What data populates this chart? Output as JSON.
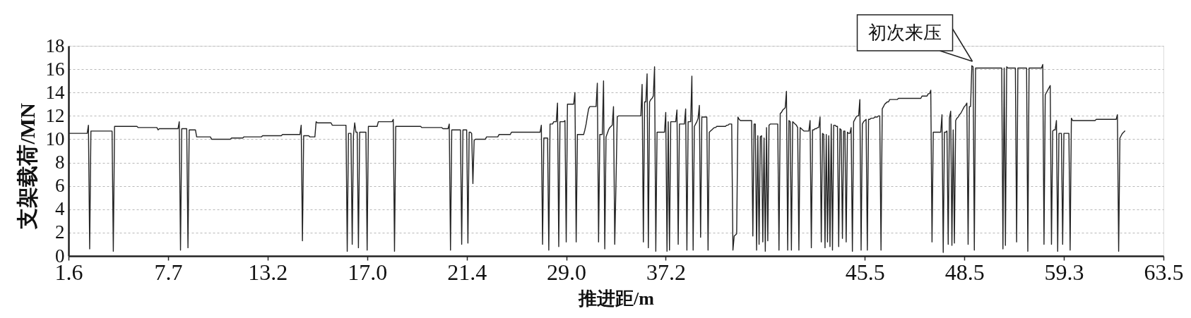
{
  "chart_data": {
    "type": "line",
    "xlabel": "推进距/m",
    "ylabel": "支架载荷/MN",
    "categories": [
      "1.6",
      null,
      null,
      null,
      null,
      null,
      null,
      null,
      null,
      null,
      null,
      null,
      null,
      null,
      null,
      null,
      null,
      null,
      null,
      null,
      null,
      null,
      null,
      null,
      null,
      null,
      null,
      null,
      null,
      null,
      null,
      null,
      null,
      null,
      null,
      null,
      null,
      null,
      null,
      null,
      null,
      null,
      null,
      null,
      null,
      null,
      null,
      null,
      null,
      null,
      null,
      null,
      null,
      null,
      null,
      null,
      null,
      null,
      null,
      null,
      null,
      null,
      null,
      null,
      null,
      null,
      null,
      null,
      null,
      null,
      null,
      null,
      null,
      null,
      null,
      null,
      null,
      null,
      null,
      null,
      "7.7",
      null,
      null,
      null,
      null,
      null,
      null,
      null,
      null,
      null,
      null,
      null,
      null,
      null,
      null,
      null,
      null,
      null,
      null,
      null,
      null,
      null,
      null,
      null,
      null,
      null,
      null,
      null,
      null,
      null,
      null,
      null,
      null,
      null,
      null,
      null,
      null,
      null,
      null,
      null,
      null,
      null,
      null,
      null,
      null,
      null,
      null,
      null,
      null,
      null,
      null,
      null,
      null,
      null,
      null,
      null,
      null,
      null,
      null,
      null,
      null,
      null,
      null,
      null,
      null,
      null,
      null,
      null,
      null,
      null,
      null,
      null,
      null,
      null,
      null,
      null,
      null,
      null,
      null,
      null,
      "13.2",
      null,
      null,
      null,
      null,
      null,
      null,
      null,
      null,
      null,
      null,
      null,
      null,
      null,
      null,
      null,
      null,
      null,
      null,
      null,
      null,
      null,
      null,
      null,
      null,
      null,
      null,
      null,
      null,
      null,
      null,
      null,
      null,
      null,
      null,
      null,
      null,
      null,
      null,
      null,
      null,
      null,
      null,
      null,
      null,
      null,
      null,
      null,
      null,
      null,
      null,
      null,
      null,
      null,
      null,
      null,
      null,
      null,
      null,
      null,
      null,
      null,
      null,
      null,
      null,
      null,
      null,
      null,
      null,
      null,
      null,
      null,
      null,
      null,
      null,
      null,
      null,
      null,
      null,
      null,
      "17.0",
      null,
      null,
      null,
      null,
      null,
      null,
      null,
      null,
      null,
      null,
      null,
      null,
      null,
      null,
      null,
      null,
      null,
      null,
      null,
      null,
      null,
      null,
      null,
      null,
      null,
      null,
      null,
      null,
      null,
      null,
      null,
      null,
      null,
      null,
      null,
      null,
      null,
      null,
      null,
      null,
      null,
      null,
      null,
      null,
      null,
      null,
      null,
      null,
      null,
      null,
      null,
      null,
      null,
      null,
      null,
      null,
      null,
      null,
      null,
      null,
      null,
      null,
      null,
      null,
      null,
      null,
      null,
      null,
      null,
      null,
      null,
      null,
      null,
      null,
      null,
      null,
      null,
      null,
      null,
      "21.4",
      null,
      null,
      null,
      null,
      null,
      null,
      null,
      null,
      null,
      null,
      null,
      null,
      null,
      null,
      null,
      null,
      null,
      null,
      null,
      null,
      null,
      null,
      null,
      null,
      null,
      null,
      null,
      null,
      null,
      null,
      null,
      null,
      null,
      null,
      null,
      null,
      null,
      null,
      null,
      null,
      null,
      null,
      null,
      null,
      null,
      null,
      null,
      null,
      null,
      null,
      null,
      null,
      null,
      null,
      null,
      null,
      null,
      null,
      null,
      null,
      null,
      null,
      null,
      null,
      null,
      null,
      null,
      null,
      null,
      null,
      null,
      null,
      null,
      null,
      null,
      null,
      null,
      null,
      null,
      "29.0",
      null,
      null,
      null,
      null,
      null,
      null,
      null,
      null,
      null,
      null,
      null,
      null,
      null,
      null,
      null,
      null,
      null,
      null,
      null,
      null,
      null,
      null,
      null,
      null,
      null,
      null,
      null,
      null,
      null,
      null,
      null,
      null,
      null,
      null,
      null,
      null,
      null,
      null,
      null,
      null,
      null,
      null,
      null,
      null,
      null,
      null,
      null,
      null,
      null,
      null,
      null,
      null,
      null,
      null,
      null,
      null,
      null,
      null,
      null,
      null,
      null,
      null,
      null,
      null,
      null,
      null,
      null,
      null,
      null,
      null,
      null,
      null,
      null,
      null,
      null,
      null,
      null,
      null,
      null,
      "37.2",
      null,
      null,
      null,
      null,
      null,
      null,
      null,
      null,
      null,
      null,
      null,
      null,
      null,
      null,
      null,
      null,
      null,
      null,
      null,
      null,
      null,
      null,
      null,
      null,
      null,
      null,
      null,
      null,
      null,
      null,
      null,
      null,
      null,
      null,
      null,
      null,
      null,
      null,
      null,
      null,
      null,
      null,
      null,
      null,
      null,
      null,
      null,
      null,
      null,
      null,
      null,
      null,
      null,
      null,
      null,
      null,
      null,
      null,
      null,
      null,
      null,
      null,
      null,
      null,
      null,
      null,
      null,
      null,
      null,
      null,
      null,
      null,
      null,
      null,
      null,
      null,
      null,
      null,
      null,
      null,
      null,
      null,
      null,
      null,
      null,
      null,
      null,
      null,
      null,
      null,
      null,
      null,
      null,
      null,
      null,
      null,
      null,
      null,
      null,
      null,
      null,
      null,
      null,
      null,
      null,
      null,
      null,
      null,
      null,
      null,
      null,
      null,
      null,
      null,
      null,
      null,
      null,
      null,
      null,
      null,
      null,
      null,
      null,
      null,
      null,
      null,
      null,
      null,
      null,
      null,
      null,
      null,
      null,
      null,
      null,
      null,
      null,
      null,
      null,
      null,
      null,
      null,
      null,
      null,
      null,
      null,
      null,
      null,
      null,
      null,
      null,
      null,
      null,
      null,
      null,
      null,
      null,
      null,
      null,
      "45.5",
      null,
      null,
      null,
      null,
      null,
      null,
      null,
      null,
      null,
      null,
      null,
      null,
      null,
      null,
      null,
      null,
      null,
      null,
      null,
      null,
      null,
      null,
      null,
      null,
      null,
      null,
      null,
      null,
      null,
      null,
      null,
      null,
      null,
      null,
      null,
      null,
      null,
      null,
      null,
      null,
      null,
      null,
      null,
      null,
      null,
      null,
      null,
      null,
      null,
      null,
      null,
      null,
      null,
      null,
      null,
      null,
      null,
      null,
      null,
      null,
      null,
      null,
      null,
      null,
      null,
      null,
      null,
      null,
      null,
      null,
      null,
      null,
      null,
      null,
      null,
      null,
      null,
      null,
      null,
      "48.5",
      null,
      null,
      null,
      null,
      null,
      null,
      null,
      null,
      null,
      null,
      null,
      null,
      null,
      null,
      null,
      null,
      null,
      null,
      null,
      null,
      null,
      null,
      null,
      null,
      null,
      null,
      null,
      null,
      null,
      null,
      null,
      null,
      null,
      null,
      null,
      null,
      null,
      null,
      null,
      null,
      null,
      null,
      null,
      null,
      null,
      null,
      null,
      null,
      null,
      null,
      null,
      null,
      null,
      null,
      null,
      null,
      null,
      null,
      null,
      null,
      null,
      null,
      null,
      null,
      null,
      null,
      null,
      null,
      null,
      null,
      null,
      null,
      null,
      null,
      null,
      null,
      null,
      null,
      null,
      "59.3",
      null,
      null,
      null,
      null,
      null,
      null,
      null,
      null,
      null,
      null,
      null,
      null,
      null,
      null,
      null,
      null,
      null,
      null,
      null,
      null,
      null,
      null,
      null,
      null,
      null,
      null,
      null,
      null,
      null,
      null,
      null,
      null,
      null,
      null,
      null,
      null,
      null,
      null,
      null,
      null,
      null,
      null,
      null,
      null,
      null,
      null,
      null,
      null,
      null,
      null,
      null,
      null,
      null,
      null,
      null,
      null,
      null,
      null,
      null,
      null,
      null,
      null,
      null,
      null,
      null,
      null,
      null,
      null,
      null,
      null,
      null,
      null,
      null,
      null,
      null,
      null,
      null,
      null,
      null,
      "63.5"
    ],
    "series": [
      {
        "color": "#222222",
        "values": [
          10.5,
          10.5,
          10.5,
          10.5,
          10.5,
          10.5,
          10.5,
          10.5,
          10.5,
          10.5,
          10.5,
          10.5,
          10.5,
          10.5,
          10.5,
          10.5,
          11.2,
          0.6,
          10.7,
          10.7,
          10.7,
          10.7,
          10.7,
          10.7,
          10.7,
          10.7,
          10.7,
          10.7,
          10.7,
          10.7,
          10.7,
          10.7,
          10.7,
          10.7,
          10.7,
          10.7,
          0.4,
          11.1,
          11.1,
          11.1,
          11.1,
          11.1,
          11.1,
          11.1,
          11.1,
          11.1,
          11.1,
          11.1,
          11.1,
          11.1,
          11.1,
          11.1,
          11.1,
          11.1,
          11.1,
          11.1,
          11.0,
          11.0,
          11.0,
          11.0,
          11.0,
          11.0,
          11.0,
          11.0,
          11.0,
          11.0,
          11.0,
          11.0,
          11.0,
          11.0,
          11.0,
          11.0,
          10.8,
          10.9,
          10.9,
          10.9,
          10.9,
          10.9,
          10.9,
          10.9,
          10.9,
          10.9,
          10.9,
          10.9,
          10.9,
          10.9,
          10.9,
          10.9,
          10.9,
          11.5,
          0.5,
          10.9,
          10.9,
          10.9,
          10.9,
          10.9,
          0.7,
          10.8,
          10.8,
          10.8,
          10.8,
          10.8,
          10.8,
          10.2,
          10.2,
          10.2,
          10.2,
          10.2,
          10.2,
          10.2,
          10.2,
          10.2,
          10.2,
          10.2,
          10.2,
          10.0,
          10.0,
          10.0,
          10.0,
          10.0,
          10.0,
          10.0,
          10.0,
          10.0,
          10.0,
          10.0,
          10.0,
          10.0,
          10.0,
          10.0,
          10.0,
          10.1,
          10.1,
          10.1,
          10.1,
          10.1,
          10.1,
          10.1,
          10.1,
          10.1,
          10.1,
          10.2,
          10.2,
          10.2,
          10.2,
          10.2,
          10.2,
          10.2,
          10.2,
          10.2,
          10.2,
          10.2,
          10.2,
          10.2,
          10.2,
          10.2,
          10.3,
          10.3,
          10.3,
          10.3,
          10.3,
          10.3,
          10.3,
          10.3,
          10.3,
          10.3,
          10.3,
          10.3,
          10.3,
          10.3,
          10.3,
          10.3,
          10.4,
          10.4,
          10.4,
          10.4,
          10.4,
          10.4,
          10.4,
          10.4,
          10.4,
          10.4,
          10.4,
          10.4,
          10.4,
          10.4,
          10.4,
          11.2,
          1.3,
          10.3,
          10.3,
          10.3,
          10.3,
          10.3,
          10.2,
          10.2,
          10.2,
          10.2,
          10.2,
          11.5,
          11.4,
          11.4,
          11.4,
          11.4,
          11.4,
          11.4,
          11.4,
          11.4,
          11.4,
          11.4,
          11.4,
          11.4,
          11.2,
          11.2,
          11.2,
          11.2,
          11.2,
          11.2,
          11.2,
          11.2,
          11.2,
          11.2,
          11.2,
          11.2,
          0.4,
          10.5,
          10.5,
          10.5,
          1.0,
          10.3,
          11.4,
          10.6,
          10.6,
          0.7,
          10.6,
          10.6,
          10.6,
          10.6,
          10.6,
          10.6,
          0.5,
          11.1,
          11.1,
          11.1,
          11.1,
          11.1,
          11.1,
          11.1,
          11.1,
          11.5,
          11.5,
          11.5,
          11.5,
          11.5,
          11.5,
          11.5,
          11.5,
          11.5,
          11.5,
          11.5,
          11.5,
          11.7,
          0.4,
          11.1,
          11.1,
          11.1,
          11.1,
          11.1,
          11.1,
          11.1,
          11.1,
          11.1,
          11.1,
          11.1,
          11.1,
          11.1,
          11.1,
          11.1,
          11.1,
          11.1,
          11.1,
          11.1,
          11.1,
          11.1,
          11.0,
          11.0,
          11.0,
          11.0,
          11.0,
          11.0,
          11.0,
          11.0,
          11.0,
          11.0,
          11.0,
          11.0,
          11.0,
          11.0,
          11.0,
          11.0,
          11.0,
          10.9,
          10.9,
          10.9,
          10.9,
          10.9,
          11.3,
          0.5,
          10.8,
          10.8,
          10.8,
          10.8,
          10.8,
          10.8,
          10.8,
          10.8,
          1.0,
          10.8,
          10.8,
          10.8,
          10.8,
          1.1,
          10.6,
          10.6,
          10.5,
          6.2,
          9.9,
          10.0,
          10.0,
          10.0,
          10.0,
          10.0,
          10.0,
          10.0,
          10.0,
          10.0,
          10.2,
          10.2,
          10.2,
          10.2,
          10.2,
          10.2,
          10.2,
          10.2,
          10.2,
          10.2,
          10.4,
          10.4,
          10.4,
          10.4,
          10.4,
          10.4,
          10.4,
          10.4,
          10.4,
          10.4,
          10.6,
          10.6,
          10.6,
          10.6,
          10.6,
          10.6,
          10.6,
          10.6,
          10.6,
          10.6,
          10.6,
          10.6,
          10.6,
          10.6,
          10.6,
          10.6,
          10.6,
          10.6,
          10.6,
          10.6,
          10.6,
          10.6,
          10.6,
          10.6,
          11.2,
          1.0,
          10.1,
          10.1,
          10.1,
          10.1,
          0.5,
          11.3,
          11.3,
          11.3,
          11.5,
          11.5,
          11.5,
          13.1,
          0.8,
          11.5,
          11.5,
          11.5,
          11.5,
          11.6,
          1.2,
          13.0,
          13.0,
          13.0,
          13.0,
          13.0,
          13.0,
          14.0,
          1.2,
          10.4,
          10.4,
          10.4,
          10.4,
          10.4,
          10.4,
          10.8,
          11.3,
          12.0,
          12.6,
          12.8,
          12.8,
          12.8,
          12.8,
          12.8,
          12.8,
          14.8,
          1.2,
          10.4,
          10.4,
          10.4,
          15.0,
          0.6,
          10.2,
          10.5,
          10.8,
          11.0,
          11.1,
          11.2,
          12.8,
          1.0,
          6.2,
          11.9,
          12.0,
          12.0,
          12.0,
          12.0,
          12.0,
          12.0,
          12.0,
          12.0,
          12.0,
          12.0,
          12.0,
          12.0,
          12.0,
          12.0,
          12.0,
          12.0,
          12.0,
          12.0,
          12.0,
          14.7,
          1.2,
          13.2,
          13.2,
          15.6,
          0.7,
          13.2,
          13.4,
          13.5,
          13.7,
          16.2,
          0.4,
          10.6,
          10.6,
          10.6,
          10.6,
          10.6,
          10.6,
          10.6,
          12.3,
          0.4,
          11.5,
          0.5,
          11.5,
          11.5,
          11.5,
          11.5,
          11.5,
          12.5,
          1.0,
          11.3,
          11.3,
          11.3,
          11.3,
          11.3,
          12.6,
          0.5,
          11.5,
          11.5,
          11.5,
          15.4,
          0.5,
          11.1,
          11.3,
          11.5,
          11.8,
          12.9,
          1.6,
          11.9,
          11.9,
          11.9,
          11.9,
          11.9,
          0.5,
          10.6,
          10.7,
          10.8,
          10.9,
          11.0,
          11.0,
          11.1,
          11.1,
          11.1,
          11.1,
          11.1,
          11.1,
          11.1,
          11.1,
          11.2,
          11.2,
          11.3,
          11.3,
          11.3,
          0.5,
          1.7,
          1.8,
          1.9,
          11.9,
          11.7,
          11.6,
          11.6,
          11.6,
          11.6,
          11.6,
          11.6,
          11.6,
          11.6,
          11.6,
          11.6,
          1.7,
          11.3,
          11.3,
          0.5,
          10.3,
          1.0,
          10.2,
          10.3,
          1.2,
          10.1,
          0.4,
          11.0,
          1.3,
          11.2,
          11.3,
          11.3,
          11.3,
          11.3,
          11.3,
          11.3,
          11.3,
          0.5,
          12.2,
          12.3,
          12.5,
          12.6,
          12.7,
          14.1,
          0.5,
          11.6,
          11.5,
          0.5,
          11.5,
          11.4,
          11.3,
          11.2,
          11.0,
          0.5,
          11.0,
          10.9,
          10.8,
          10.7,
          10.7,
          10.7,
          10.7,
          10.7,
          11.6,
          0.7,
          10.8,
          10.8,
          10.9,
          10.9,
          11.0,
          11.0,
          11.9,
          1.2,
          10.5,
          10.4,
          0.7,
          10.4,
          1.2,
          10.3,
          0.8,
          11.3,
          0.5,
          11.2,
          11.2,
          11.1,
          11.1,
          0.8,
          10.9,
          10.8,
          1.5,
          10.7,
          10.7,
          1.2,
          10.6,
          10.5,
          10.5,
          11.0,
          0.4,
          11.5,
          11.7,
          11.9,
          12.0,
          12.0,
          13.4,
          0.5,
          11.3,
          11.5,
          11.6,
          11.7,
          0.5,
          11.7,
          11.7,
          11.8,
          11.8,
          11.8,
          11.9,
          11.9,
          11.9,
          12.0,
          12.0,
          0.5,
          12.6,
          12.8,
          13.0,
          13.1,
          13.2,
          13.2,
          13.4,
          13.4,
          13.4,
          13.4,
          13.4,
          13.4,
          13.4,
          13.5,
          13.5,
          13.5,
          13.5,
          13.5,
          13.5,
          13.5,
          13.5,
          13.5,
          13.5,
          13.5,
          13.5,
          13.5,
          13.5,
          13.5,
          13.5,
          13.5,
          13.5,
          13.5,
          13.7,
          13.7,
          13.7,
          13.7,
          13.7,
          13.9,
          13.9,
          14.2,
          1.2,
          10.6,
          10.6,
          10.6,
          10.6,
          10.6,
          10.6,
          10.6,
          12.1,
          0.3,
          10.6,
          10.6,
          10.7,
          1.0,
          11.8,
          12.4,
          0.9,
          10.8,
          1.1,
          11.6,
          11.8,
          11.9,
          12.1,
          12.2,
          12.4,
          12.6,
          12.8,
          12.9,
          13.1,
          1.0,
          12.8,
          12.8,
          16.3,
          16.2,
          0.5,
          16.1,
          16.1,
          16.1,
          16.1,
          16.1,
          16.1,
          16.1,
          16.1,
          16.1,
          16.1,
          16.1,
          16.1,
          16.1,
          16.1,
          16.1,
          16.1,
          16.1,
          16.1,
          16.1,
          16.1,
          16.1,
          16.1,
          0.6,
          16.1,
          0.9,
          16.2,
          16.1,
          16.1,
          16.1,
          16.1,
          16.1,
          16.1,
          16.1,
          1.2,
          16.1,
          16.1,
          16.1,
          16.1,
          16.1,
          16.1,
          16.1,
          16.1,
          0.4,
          16.1,
          16.1,
          16.1,
          16.1,
          16.1,
          16.1,
          16.1,
          16.1,
          16.1,
          16.1,
          16.1,
          16.4,
          1.0,
          13.8,
          14.0,
          14.2,
          14.4,
          14.6,
          1.0,
          10.7,
          10.8,
          10.8,
          11.6,
          0.4,
          10.5,
          10.5,
          10.5,
          1.0,
          10.5,
          10.5,
          10.5,
          10.5,
          10.5,
          0.5,
          11.8,
          11.6,
          11.6,
          11.6,
          11.6,
          11.6,
          11.6,
          11.6,
          11.6,
          11.6,
          11.6,
          11.6,
          11.6,
          11.6,
          11.6,
          11.6,
          11.6,
          11.6,
          11.6,
          11.6,
          11.7,
          11.7,
          11.7,
          11.7,
          11.7,
          11.7,
          11.7,
          11.7,
          11.7,
          11.7,
          11.7,
          11.7,
          11.7,
          11.7,
          11.7,
          11.7,
          11.7,
          12.1,
          0.4,
          10.1,
          10.3,
          10.5,
          10.6,
          10.7,
          null,
          null,
          null,
          null,
          null,
          null,
          null,
          null,
          null,
          null,
          null,
          null,
          null,
          null,
          null,
          null,
          null,
          null,
          null,
          null,
          null,
          null,
          null,
          null,
          null,
          null,
          null,
          null,
          null,
          null,
          null
        ]
      }
    ],
    "ylim": [
      0,
      18
    ],
    "yticks": [
      0,
      2,
      4,
      6,
      8,
      10,
      12,
      14,
      16,
      18
    ],
    "grid": "y",
    "line_style": "solid",
    "annotations": [
      "初次来压"
    ]
  }
}
